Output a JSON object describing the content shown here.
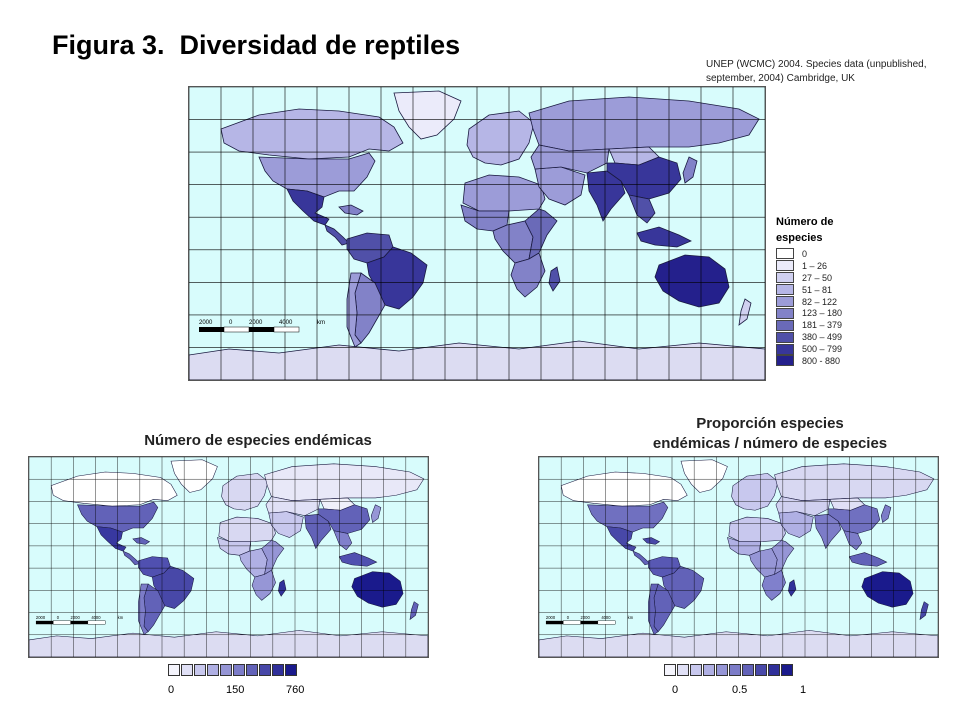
{
  "title": "Figura 3.  Diversidad de reptiles",
  "source": {
    "line1": "UNEP (WCMC) 2004. Species data (unpublished,",
    "line2": "september, 2004) Cambridge, UK"
  },
  "colors": {
    "ocean": "#d8fcfc",
    "grid": "#000000",
    "outline": "#1a1a40",
    "antarctica": "#dcdcf2"
  },
  "main_map": {
    "legend_title": "Número de especies",
    "legend": [
      {
        "label": "0",
        "color": "#ffffff"
      },
      {
        "label": "1 – 26",
        "color": "#ebebfa"
      },
      {
        "label": "27 – 50",
        "color": "#d0d0f0"
      },
      {
        "label": "51 – 81",
        "color": "#b6b6e6"
      },
      {
        "label": "82 – 122",
        "color": "#9c9cd8"
      },
      {
        "label": "123 – 180",
        "color": "#8282c8"
      },
      {
        "label": "181 – 379",
        "color": "#6a6ab8"
      },
      {
        "label": "380 – 499",
        "color": "#5050a8"
      },
      {
        "label": "500 – 799",
        "color": "#38369a"
      },
      {
        "label": "800 - 880",
        "color": "#24208c"
      }
    ],
    "scale_labels": [
      "2000",
      "0",
      "2000",
      "4000",
      "km"
    ]
  },
  "endemic_map": {
    "title": "Número de especies endémicas",
    "ramp": [
      "#f4f4fc",
      "#e0e0f6",
      "#c8c8ee",
      "#b0b0e4",
      "#9696d6",
      "#7c7cc8",
      "#6262b8",
      "#4848a8",
      "#30309a",
      "#1a1a8c"
    ],
    "ticks": [
      "0",
      "150",
      "760"
    ],
    "scale_labels": [
      "2000",
      "0",
      "2000",
      "4000",
      "km"
    ]
  },
  "proportion_map": {
    "title_line1": "Proporción especies",
    "title_line2": "endémicas / número de especies",
    "ramp": [
      "#f4f4fc",
      "#e0e0f6",
      "#c8c8ee",
      "#b0b0e4",
      "#9696d6",
      "#7c7cc8",
      "#6262b8",
      "#4848a8",
      "#30309a",
      "#1a1a8c"
    ],
    "ticks": [
      "0",
      "0.5",
      "1"
    ],
    "scale_labels": [
      "2000",
      "0",
      "2000",
      "4000",
      "km"
    ]
  },
  "regions": {
    "main": {
      "canada": "#b6b6e6",
      "greenland": "#ebebfa",
      "usa": "#9c9cd8",
      "mexico": "#38369a",
      "central_america": "#5050a8",
      "caribbean": "#8282c8",
      "northern_south_america": "#5050a8",
      "brazil": "#38369a",
      "southern_south_america": "#8282c8",
      "chile": "#9c9cd8",
      "europe": "#b6b6e6",
      "russia": "#9c9cd8",
      "north_africa": "#9c9cd8",
      "west_africa": "#8282c8",
      "central_africa": "#8282c8",
      "east_africa": "#6a6ab8",
      "southern_africa": "#8282c8",
      "madagascar": "#5050a8",
      "middle_east": "#9c9cd8",
      "central_asia": "#9c9cd8",
      "india": "#38369a",
      "china": "#38369a",
      "mongolia": "#b6b6e6",
      "southeast_asia": "#5050a8",
      "indonesia": "#38369a",
      "japan": "#8282c8",
      "australia": "#24208c",
      "new_zealand": "#d0d0f0",
      "antarctica": "#dcdcf2"
    },
    "endemic": {
      "canada": "#ffffff",
      "greenland": "#ffffff",
      "usa": "#6262b8",
      "mexico": "#3838a0",
      "central_america": "#6262b8",
      "caribbean": "#6262b8",
      "northern_south_america": "#5050b0",
      "brazil": "#4848a8",
      "southern_south_america": "#6262b8",
      "chile": "#7c7cc8",
      "europe": "#d8d8f2",
      "russia": "#e8e8f8",
      "north_africa": "#d8d8f2",
      "west_africa": "#c8c8ee",
      "central_africa": "#b0b0e4",
      "east_africa": "#9696d6",
      "southern_africa": "#9696d6",
      "madagascar": "#30309a",
      "middle_east": "#c8c8ee",
      "central_asia": "#e0e0f6",
      "india": "#6262b8",
      "china": "#6262b8",
      "mongolia": "#f0f0fa",
      "southeast_asia": "#8080cc",
      "indonesia": "#5050b0",
      "japan": "#9696d6",
      "australia": "#1a1a8c",
      "new_zealand": "#6262b8",
      "antarctica": "#dcdcf2"
    },
    "proportion": {
      "canada": "#ffffff",
      "greenland": "#ffffff",
      "usa": "#7070c0",
      "mexico": "#4848a8",
      "central_america": "#6262b8",
      "caribbean": "#4848a8",
      "northern_south_america": "#5858b4",
      "brazil": "#6262b8",
      "southern_south_america": "#6262b8",
      "chile": "#6262b8",
      "europe": "#c8c8ee",
      "russia": "#d8d8f2",
      "north_africa": "#c8c8ee",
      "west_africa": "#b0b0e4",
      "central_africa": "#9696d6",
      "east_africa": "#9696d6",
      "southern_africa": "#8080cc",
      "madagascar": "#30309a",
      "middle_east": "#b0b0e4",
      "central_asia": "#d0d0f0",
      "india": "#7c7cc8",
      "china": "#7070c0",
      "mongolia": "#e0e0f6",
      "southeast_asia": "#7c7cc8",
      "indonesia": "#6262b8",
      "japan": "#7c7cc8",
      "australia": "#1a1a8c",
      "new_zealand": "#4848a8",
      "antarctica": "#dcdcf2"
    }
  }
}
